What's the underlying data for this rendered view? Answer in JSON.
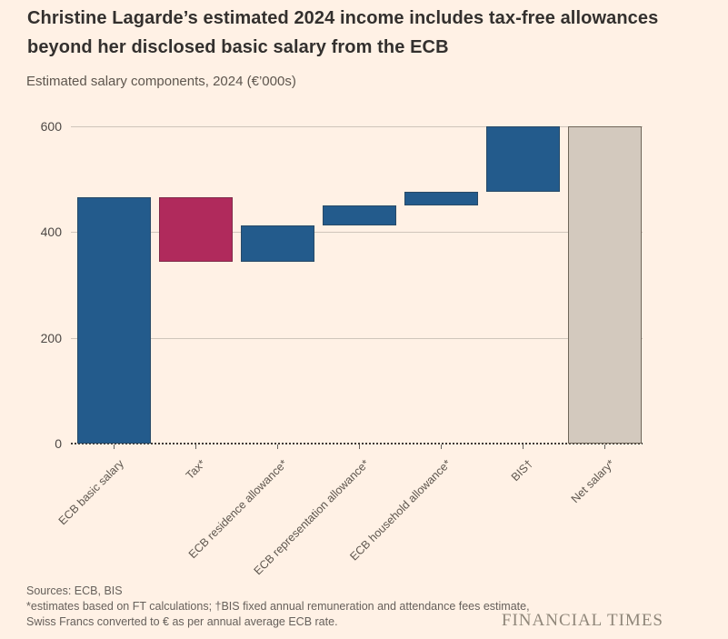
{
  "header": {
    "title": "Christine Lagarde’s estimated 2024 income includes tax-free allowances beyond her disclosed basic salary from the ECB",
    "subtitle": "Estimated salary components, 2024 (€’000s)"
  },
  "chart_data": {
    "type": "bar",
    "subtype": "waterfall",
    "title": "Christine Lagarde’s estimated 2024 income includes tax-free allowances beyond her disclosed basic salary from the ECB",
    "subtitle": "Estimated salary components, 2024 (€’000s)",
    "categories": [
      "ECB basic salary",
      "Tax*",
      "ECB residence allowance*",
      "ECB representation allowance*",
      "ECB household allowance*",
      "BIS†",
      "Net salary*"
    ],
    "segments": [
      {
        "label": "ECB basic salary",
        "start": 0,
        "end": 466,
        "value": 466,
        "color": "blue"
      },
      {
        "label": "Tax*",
        "start": 466,
        "end": 343,
        "value": -123,
        "color": "crimson"
      },
      {
        "label": "ECB residence allowance*",
        "start": 343,
        "end": 412,
        "value": 69,
        "color": "blue"
      },
      {
        "label": "ECB representation allowance*",
        "start": 412,
        "end": 451,
        "value": 39,
        "color": "blue"
      },
      {
        "label": "ECB household allowance*",
        "start": 451,
        "end": 477,
        "value": 26,
        "color": "blue"
      },
      {
        "label": "BIS†",
        "start": 477,
        "end": 600,
        "value": 123,
        "color": "blue"
      },
      {
        "label": "Net salary*",
        "start": 0,
        "end": 600,
        "value": 600,
        "color": "gray"
      }
    ],
    "xlabel": "",
    "ylabel": "",
    "y_ticks": [
      0,
      200,
      400,
      600
    ],
    "ylim": [
      0,
      600
    ],
    "grid": true,
    "legend": "none",
    "colors": {
      "blue": "#235B8C",
      "crimson": "#B02A5C",
      "gray_fill": "#D3C9BE",
      "gray_border": "#6F6659",
      "background": "#FFF1E5",
      "gridline": "#CFC5BA"
    }
  },
  "footer": {
    "sources": "Sources: ECB, BIS",
    "note1": "*estimates based on FT calculations; †BIS fixed annual remuneration and attendance fees estimate,",
    "note2": "Swiss Francs converted to € as per annual average ECB rate.",
    "logo": "FINANCIAL TIMES"
  }
}
